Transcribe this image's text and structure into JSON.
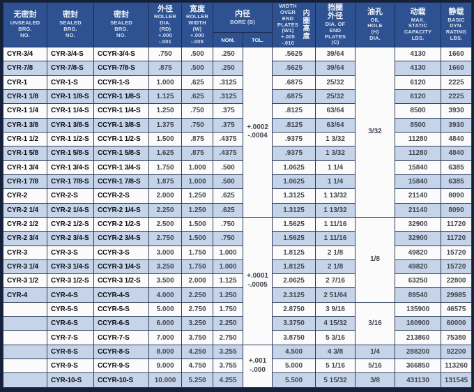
{
  "colors": {
    "header_bg": "#2e5291",
    "row_band": "#c6d4ea",
    "row_plain": "#fbfbfb",
    "frame": "#15203a",
    "grid_line": "#2c3a59"
  },
  "table": {
    "headers": {
      "unsealed": {
        "zh": "无密封",
        "en": "UNSEALED\nBRG.\nNO."
      },
      "sealed": {
        "zh": "密封",
        "en": "SEALED\nBRG.\nNO."
      },
      "sealed2": {
        "zh": "密封",
        "en": "SEALED\nBRG.\nNO."
      },
      "roller_dia": {
        "zh": "外径",
        "en": "ROLLER\nDIA.\n(RD)\n+.000\n-.001"
      },
      "roller_width": {
        "zh": "宽度",
        "en": "ROLLER\nWIDTH\n(W)\n+.000\n-.005"
      },
      "bore": {
        "zh": "内径",
        "en": "BORE (B)",
        "sub_nom": "NOM.",
        "sub_tol": "TOL."
      },
      "w1": {
        "en": "WIDTH\nOVER\nEND\nPLATES\n(W1)\n+.005\n-.010",
        "zh_vertical": "内圈高度"
      },
      "c": {
        "zh": "挡圈\n外径",
        "en": "DIA. OF\nEND\nPLATES\n(C)"
      },
      "oil": {
        "zh": "油孔",
        "en": "OIL\nHOLE\n(H)\nDIA."
      },
      "capacity": {
        "zh": "动载",
        "en": "MAX.\nSTATIC\nCAPACITY\nLBS."
      },
      "rating": {
        "zh": "静载",
        "en": "BASIC\nDYN.\nRATING\nLBS."
      }
    },
    "rows": [
      [
        "CYR-3/4",
        "CYR-3/4-S",
        "CCYR-3/4-S",
        ".750",
        ".500",
        ".250",
        ".5625",
        "39/64",
        "4130",
        "1660"
      ],
      [
        "CYR-7/8",
        "CYR-7/8-S",
        "CCYR-7/8-S",
        ".875",
        ".500",
        ".250",
        ".5625",
        "39/64",
        "4130",
        "1660"
      ],
      [
        "CYR-1",
        "CYR-1-S",
        "CCYR-1-S",
        "1.000",
        ".625",
        ".3125",
        ".6875",
        "25/32",
        "6120",
        "2225"
      ],
      [
        "CYR-1 1/8",
        "CYR-1 1/8-S",
        "CCYR-1 1/8-S",
        "1.125",
        ".625",
        ".3125",
        ".6875",
        "25/32",
        "6120",
        "2225"
      ],
      [
        "CYR-1 1/4",
        "CYR-1 1/4-S",
        "CCYR-1 1/4-S",
        "1.250",
        ".750",
        ".375",
        ".8125",
        "63/64",
        "8500",
        "3930"
      ],
      [
        "CYR-1 3/8",
        "CYR-1 3/8-S",
        "CCYR-1 3/8-S",
        "1.375",
        ".750",
        ".375",
        ".8125",
        "63/64",
        "8500",
        "3930"
      ],
      [
        "CYR-1 1/2",
        "CYR-1 1/2-S",
        "CCYR-1 1/2-S",
        "1.500",
        ".875",
        ".4375",
        ".9375",
        "1 3/32",
        "11280",
        "4840"
      ],
      [
        "CYR-1 5/8",
        "CYR-1 5/8-S",
        "CCYR-1 5/8-S",
        "1.625",
        ".875",
        ".4375",
        ".9375",
        "1 3/32",
        "11280",
        "4840"
      ],
      [
        "CYR-1 3/4",
        "CYR-1 3/4-S",
        "CCYR-1 3/4-S",
        "1.750",
        "1.000",
        ".500",
        "1.0625",
        "1 1/4",
        "15840",
        "6385"
      ],
      [
        "CYR-1 7/8",
        "CYR-1 7/8-S",
        "CCYR-1 7/8-S",
        "1.875",
        "1.000",
        ".500",
        "1.0625",
        "1 1/4",
        "15840",
        "6385"
      ],
      [
        "CYR-2",
        "CYR-2-S",
        "CCYR-2-S",
        "2.000",
        "1.250",
        ".625",
        "1.3125",
        "1 13/32",
        "21140",
        "8090"
      ],
      [
        "CYR-2 1/4",
        "CYR-2 1/4-S",
        "CCYR-2 1/4-S",
        "2.250",
        "1.250",
        ".625",
        "1.3125",
        "1 13/32",
        "21140",
        "8090"
      ],
      [
        "CYR-2 1/2",
        "CYR-2 1/2-S",
        "CCYR-2 1/2-S",
        "2.500",
        "1.500",
        ".750",
        "1.5625",
        "1 11/16",
        "32900",
        "11720"
      ],
      [
        "CYR-2 3/4",
        "CYR-2 3/4-S",
        "CCYR-2 3/4-S",
        "2.750",
        "1.500",
        ".750",
        "1.5625",
        "1 11/16",
        "32900",
        "11720"
      ],
      [
        "CYR-3",
        "CYR-3-S",
        "CCYR-3-S",
        "3.000",
        "1.750",
        "1.000",
        "1.8125",
        "2 1/8",
        "49820",
        "15720"
      ],
      [
        "CYR-3 1/4",
        "CYR-3 1/4-S",
        "CCYR-3 1/4-S",
        "3.250",
        "1.750",
        "1.000",
        "1.8125",
        "2 1/8",
        "49820",
        "15720"
      ],
      [
        "CYR-3 1/2",
        "CYR-3 1/2-S",
        "CCYR-3 1/2-S",
        "3.500",
        "2.000",
        "1.125",
        "2.0625",
        "2 7/16",
        "63250",
        "22800"
      ],
      [
        "CYR-4",
        "CYR-4-S",
        "CCYR-4-S",
        "4.000",
        "2.250",
        "1.250",
        "2.3125",
        "2 51/64",
        "89540",
        "29985"
      ],
      [
        "",
        "CYR-5-S",
        "CCYR-5-S",
        "5.000",
        "2.750",
        "1.750",
        "2.8750",
        "3 9/16",
        "135900",
        "46575"
      ],
      [
        "",
        "CYR-6-S",
        "CCYR-6-S",
        "6.000",
        "3.250",
        "2.250",
        "3.3750",
        "4 15/32",
        "160900",
        "60000"
      ],
      [
        "",
        "CYR-7-S",
        "CCYR-7-S",
        "7.000",
        "3.750",
        "2.750",
        "3.8750",
        "5 3/16",
        "213860",
        "75380"
      ],
      [
        "",
        "CYR-8-S",
        "CCYR-8-S",
        "8.000",
        "4.250",
        "3.255",
        "4.500",
        "4 3/8",
        "288200",
        "92200"
      ],
      [
        "",
        "CYR-9-S",
        "CCYR-9-S",
        "9.000",
        "4.750",
        "3.755",
        "5.000",
        "5 1/16",
        "366850",
        "113260"
      ],
      [
        "",
        "CYR-10-S",
        "CCYR-10-S",
        "10.000",
        "5.250",
        "4.255",
        "5.500",
        "5 15/32",
        "431130",
        "131545"
      ]
    ],
    "tol_spans": [
      {
        "start": 0,
        "span": 12,
        "text": "+.0002\n-.0004"
      },
      {
        "start": 12,
        "span": 9,
        "text": "+.0001\n-.0005"
      },
      {
        "start": 21,
        "span": 3,
        "text": "+.001\n-.000"
      }
    ],
    "oil_spans": [
      {
        "start": 0,
        "span": 12,
        "text": "3/32"
      },
      {
        "start": 12,
        "span": 6,
        "text": "1/8"
      },
      {
        "start": 18,
        "span": 3,
        "text": "3/16"
      },
      {
        "start": 21,
        "span": 1,
        "text": "1/4"
      },
      {
        "start": 22,
        "span": 1,
        "text": "5/16"
      },
      {
        "start": 23,
        "span": 1,
        "text": "3/8"
      }
    ]
  }
}
